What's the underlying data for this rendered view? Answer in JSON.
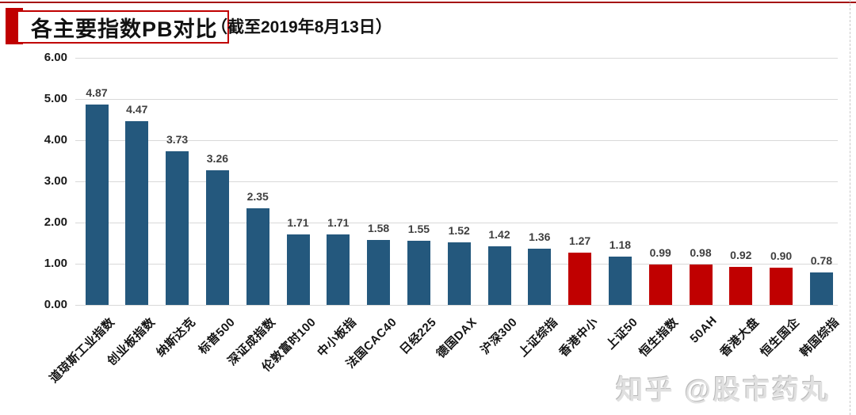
{
  "header": {
    "title": "各主要指数PB对比",
    "subtitle": "（截至2019年8月13日）"
  },
  "watermark": "知乎 @股市药丸",
  "colors": {
    "bar_blue": "#24587d",
    "bar_red": "#c00000",
    "accent_red": "#c00000",
    "gridline": "#d9d9d9",
    "value_label": "#3f3f3f"
  },
  "chart_data": {
    "type": "bar",
    "title": "各主要指数PB对比",
    "subtitle": "（截至2019年8月13日）",
    "categories": [
      "道琼斯工业指数",
      "创业板指数",
      "纳斯达克",
      "标普500",
      "深证成指数",
      "伦敦富时100",
      "中小板指",
      "法国CAC40",
      "日经225",
      "德国DAX",
      "沪深300",
      "上证综指",
      "香港中小",
      "上证50",
      "恒生指数",
      "50AH",
      "香港大盘",
      "恒生国企",
      "韩国综指"
    ],
    "values": [
      4.87,
      4.47,
      3.73,
      3.26,
      2.35,
      1.71,
      1.71,
      1.58,
      1.55,
      1.52,
      1.42,
      1.36,
      1.27,
      1.18,
      0.99,
      0.98,
      0.92,
      0.9,
      0.78
    ],
    "bar_colors": [
      "blue",
      "blue",
      "blue",
      "blue",
      "blue",
      "blue",
      "blue",
      "blue",
      "blue",
      "blue",
      "blue",
      "blue",
      "red",
      "blue",
      "red",
      "red",
      "red",
      "red",
      "blue"
    ],
    "data_labels": true,
    "xlabel": "",
    "ylabel": "",
    "ylim": [
      0,
      6
    ],
    "ytick_interval": 1,
    "ytick_labels": [
      "0.00",
      "1.00",
      "2.00",
      "3.00",
      "4.00",
      "5.00",
      "6.00"
    ],
    "grid": true,
    "legend": false
  }
}
